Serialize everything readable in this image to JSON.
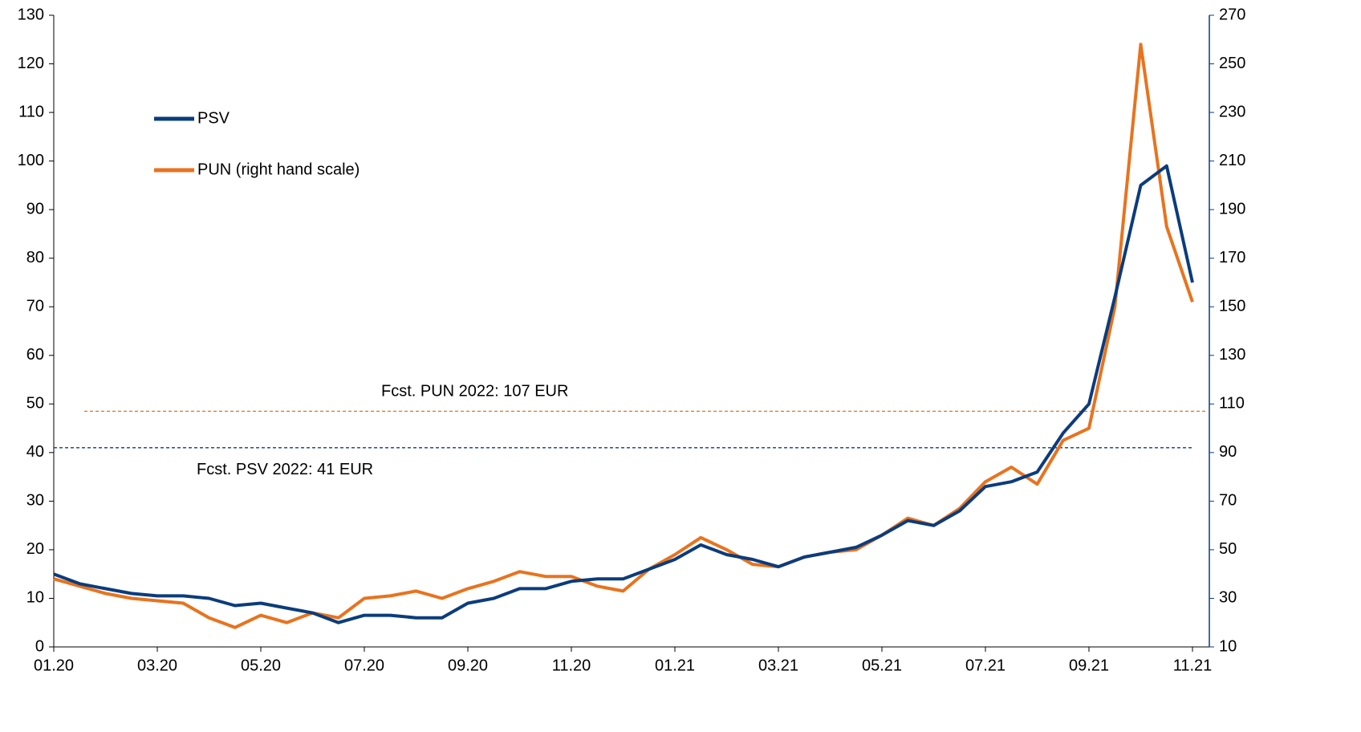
{
  "chart_data": {
    "type": "line",
    "categories": [
      "01.20",
      null,
      null,
      null,
      "03.20",
      null,
      null,
      null,
      "05.20",
      null,
      null,
      null,
      "07.20",
      null,
      null,
      null,
      "09.20",
      null,
      null,
      null,
      "11.20",
      null,
      null,
      null,
      "01.21",
      null,
      null,
      null,
      "03.21",
      null,
      null,
      null,
      "05.21",
      null,
      null,
      null,
      "07.21",
      null,
      null,
      null,
      "09.21",
      null,
      null,
      null,
      "11.21"
    ],
    "series": [
      {
        "name": "PSV",
        "color": "#0b3c7d",
        "values": [
          15,
          13,
          12,
          11,
          10.5,
          10.5,
          10,
          8.5,
          9,
          8,
          7,
          5,
          6.5,
          6.5,
          6,
          6,
          9,
          10,
          12,
          12,
          13.5,
          14,
          14,
          16,
          18,
          21,
          19,
          18,
          16.5,
          18.5,
          19.5,
          20.5,
          23,
          26,
          25,
          28,
          33,
          34,
          36,
          44,
          50,
          72,
          95,
          99,
          75
        ]
      },
      {
        "name": "PUN (right hand scale)",
        "color": "#e8731e",
        "axis": "y2",
        "values": [
          38,
          35,
          32,
          30,
          29,
          28,
          22,
          18,
          23,
          20,
          24,
          22,
          30,
          31,
          33,
          30,
          34,
          37,
          41,
          39,
          39,
          35,
          33,
          42,
          48,
          55,
          50,
          44,
          43,
          47,
          49,
          50,
          56,
          63,
          60,
          67,
          78,
          84,
          77,
          95,
          100,
          150,
          258,
          183,
          152
        ]
      }
    ],
    "ylim": [
      0,
      130
    ],
    "yticks": [
      0,
      10,
      20,
      30,
      40,
      50,
      60,
      70,
      80,
      90,
      100,
      110,
      120,
      130
    ],
    "y2lim": [
      10,
      270
    ],
    "y2ticks": [
      10,
      30,
      50,
      70,
      90,
      110,
      130,
      150,
      170,
      190,
      210,
      230,
      250,
      270
    ],
    "forecasts": [
      {
        "label": "Fcst. PUN 2022: 107 EUR",
        "value": 107,
        "axis": "y2",
        "color": "#e8731e"
      },
      {
        "label": "Fcst. PSV 2022: 41 EUR",
        "value": 41,
        "axis": "y",
        "color": "#0b3c7d"
      }
    ]
  }
}
